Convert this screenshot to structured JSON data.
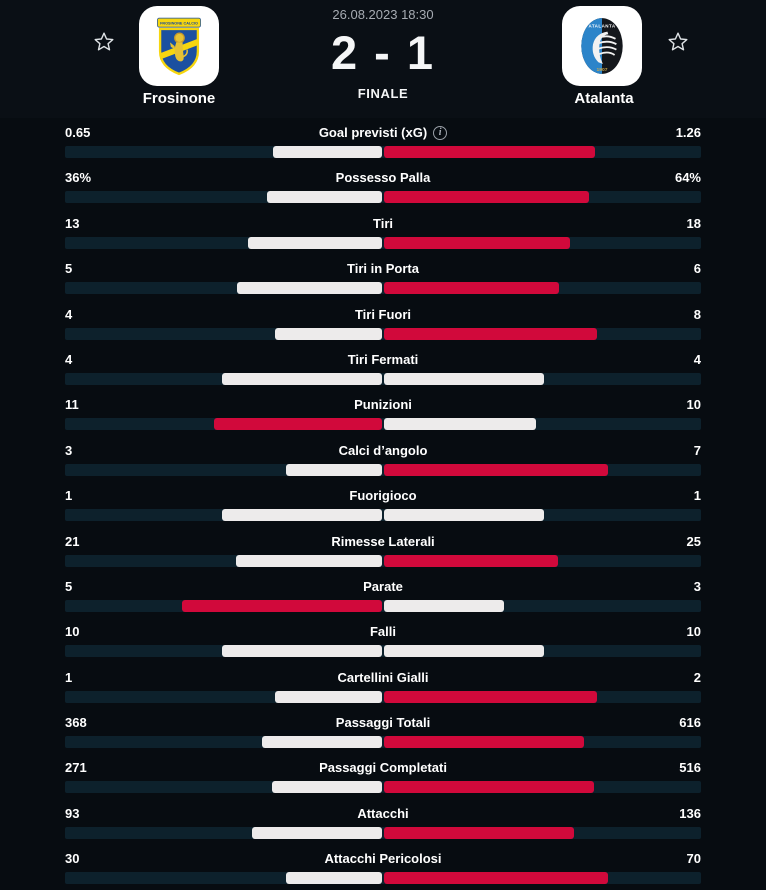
{
  "header": {
    "datetime": "26.08.2023 18:30",
    "score": "2 - 1",
    "status": "FINALE",
    "home": {
      "name": "Frosinone"
    },
    "away": {
      "name": "Atalanta"
    }
  },
  "icons": {
    "favorite_home": "star-outline",
    "favorite_away": "star-outline",
    "info_glyph": "i"
  },
  "colors": {
    "background": "#070c11",
    "header_background": "#0a0f15",
    "bar_track": "#0d212c",
    "bar_highlight_red": "#d1093b",
    "bar_neutral_white": "#edebeb",
    "muted_text": "#a6abb2"
  },
  "stats": {
    "rows": [
      {
        "label": "Goal previsti (xG)",
        "home": "0.65",
        "away": "1.26",
        "home_val": 0.65,
        "away_val": 1.26,
        "info": true
      },
      {
        "label": "Possesso Palla",
        "home": "36%",
        "away": "64%",
        "home_val": 36,
        "away_val": 64,
        "info": false
      },
      {
        "label": "Tiri",
        "home": "13",
        "away": "18",
        "home_val": 13,
        "away_val": 18,
        "info": false
      },
      {
        "label": "Tiri in Porta",
        "home": "5",
        "away": "6",
        "home_val": 5,
        "away_val": 6,
        "info": false
      },
      {
        "label": "Tiri Fuori",
        "home": "4",
        "away": "8",
        "home_val": 4,
        "away_val": 8,
        "info": false
      },
      {
        "label": "Tiri Fermati",
        "home": "4",
        "away": "4",
        "home_val": 4,
        "away_val": 4,
        "info": false
      },
      {
        "label": "Punizioni",
        "home": "11",
        "away": "10",
        "home_val": 11,
        "away_val": 10,
        "info": false
      },
      {
        "label": "Calci d’angolo",
        "home": "3",
        "away": "7",
        "home_val": 3,
        "away_val": 7,
        "info": false
      },
      {
        "label": "Fuorigioco",
        "home": "1",
        "away": "1",
        "home_val": 1,
        "away_val": 1,
        "info": false
      },
      {
        "label": "Rimesse Laterali",
        "home": "21",
        "away": "25",
        "home_val": 21,
        "away_val": 25,
        "info": false
      },
      {
        "label": "Parate",
        "home": "5",
        "away": "3",
        "home_val": 5,
        "away_val": 3,
        "info": false
      },
      {
        "label": "Falli",
        "home": "10",
        "away": "10",
        "home_val": 10,
        "away_val": 10,
        "info": false
      },
      {
        "label": "Cartellini Gialli",
        "home": "1",
        "away": "2",
        "home_val": 1,
        "away_val": 2,
        "info": false
      },
      {
        "label": "Passaggi Totali",
        "home": "368",
        "away": "616",
        "home_val": 368,
        "away_val": 616,
        "info": false
      },
      {
        "label": "Passaggi Completati",
        "home": "271",
        "away": "516",
        "home_val": 271,
        "away_val": 516,
        "info": false
      },
      {
        "label": "Attacchi",
        "home": "93",
        "away": "136",
        "home_val": 93,
        "away_val": 136,
        "info": false
      },
      {
        "label": "Attacchi Pericolosi",
        "home": "30",
        "away": "70",
        "home_val": 30,
        "away_val": 70,
        "info": false
      }
    ]
  }
}
